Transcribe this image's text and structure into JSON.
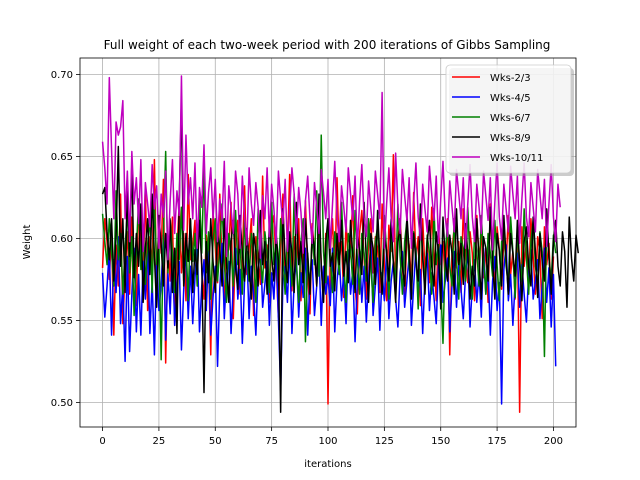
{
  "chart_data": {
    "type": "line",
    "title": "Full weight of each two-week period with 200 iterations of Gibbs Sampling",
    "xlabel": "iterations",
    "ylabel": "Weight",
    "xlim": [
      -10,
      210
    ],
    "ylim": [
      0.485,
      0.71
    ],
    "xticks": [
      0,
      25,
      50,
      75,
      100,
      125,
      150,
      175,
      200
    ],
    "yticks": [
      0.5,
      0.55,
      0.6,
      0.65,
      0.7
    ],
    "grid": true,
    "legend_position": "top-right",
    "series": [
      {
        "name": "Wks-2/3",
        "color": "#ff0000",
        "values": [
          0.582,
          0.612,
          0.598,
          0.575,
          0.603,
          0.541,
          0.596,
          0.571,
          0.627,
          0.548,
          0.579,
          0.604,
          0.566,
          0.613,
          0.585,
          0.559,
          0.621,
          0.596,
          0.574,
          0.632,
          0.556,
          0.601,
          0.583,
          0.648,
          0.569,
          0.612,
          0.591,
          0.636,
          0.524,
          0.598,
          0.574,
          0.613,
          0.547,
          0.592,
          0.621,
          0.579,
          0.603,
          0.562,
          0.639,
          0.587,
          0.596,
          0.611,
          0.571,
          0.624,
          0.581,
          0.563,
          0.602,
          0.588,
          0.529,
          0.616,
          0.595,
          0.573,
          0.627,
          0.584,
          0.561,
          0.604,
          0.593,
          0.622,
          0.551,
          0.598,
          0.611,
          0.566,
          0.587,
          0.632,
          0.578,
          0.594,
          0.612,
          0.553,
          0.601,
          0.589,
          0.572,
          0.638,
          0.582,
          0.596,
          0.561,
          0.607,
          0.614,
          0.583,
          0.552,
          0.598,
          0.627,
          0.571,
          0.593,
          0.639,
          0.568,
          0.601,
          0.584,
          0.612,
          0.562,
          0.596,
          0.623,
          0.578,
          0.554,
          0.609,
          0.592,
          0.571,
          0.618,
          0.584,
          0.561,
          0.603,
          0.499,
          0.592,
          0.612,
          0.573,
          0.637,
          0.587,
          0.598,
          0.564,
          0.611,
          0.583,
          0.592,
          0.626,
          0.571,
          0.554,
          0.603,
          0.617,
          0.588,
          0.563,
          0.598,
          0.612,
          0.579,
          0.601,
          0.594,
          0.567,
          0.621,
          0.585,
          0.562,
          0.608,
          0.592,
          0.651,
          0.571,
          0.599,
          0.612,
          0.583,
          0.561,
          0.604,
          0.596,
          0.573,
          0.628,
          0.587,
          0.601,
          0.559,
          0.612,
          0.581,
          0.596,
          0.573,
          0.619,
          0.588,
          0.562,
          0.607,
          0.584,
          0.598,
          0.574,
          0.612,
          0.529,
          0.593,
          0.607,
          0.582,
          0.598,
          0.567,
          0.618,
          0.589,
          0.573,
          0.604,
          0.591,
          0.562,
          0.614,
          0.587,
          0.603,
          0.576,
          0.594,
          0.561,
          0.621,
          0.588,
          0.572,
          0.607,
          0.593,
          0.569,
          0.601,
          0.585,
          0.614,
          0.578,
          0.592,
          0.563,
          0.604,
          0.494,
          0.607,
          0.583,
          0.598,
          0.571,
          0.612,
          0.589,
          0.566,
          0.601,
          0.592,
          0.551,
          0.607,
          0.584,
          0.597,
          0.563,
          0.589
        ]
      },
      {
        "name": "Wks-4/5",
        "color": "#0000ff",
        "values": [
          0.579,
          0.552,
          0.571,
          0.593,
          0.541,
          0.587,
          0.567,
          0.601,
          0.548,
          0.573,
          0.525,
          0.589,
          0.531,
          0.566,
          0.594,
          0.543,
          0.578,
          0.541,
          0.586,
          0.563,
          0.597,
          0.542,
          0.574,
          0.529,
          0.588,
          0.556,
          0.571,
          0.602,
          0.538,
          0.579,
          0.554,
          0.593,
          0.547,
          0.571,
          0.586,
          0.532,
          0.569,
          0.594,
          0.551,
          0.583,
          0.548,
          0.576,
          0.598,
          0.543,
          0.571,
          0.587,
          0.556,
          0.592,
          0.541,
          0.564,
          0.583,
          0.522,
          0.569,
          0.597,
          0.551,
          0.578,
          0.586,
          0.542,
          0.571,
          0.594,
          0.563,
          0.581,
          0.536,
          0.574,
          0.592,
          0.551,
          0.583,
          0.566,
          0.541,
          0.578,
          0.596,
          0.558,
          0.572,
          0.586,
          0.547,
          0.579,
          0.563,
          0.594,
          0.551,
          0.507,
          0.574,
          0.583,
          0.561,
          0.597,
          0.542,
          0.573,
          0.588,
          0.552,
          0.579,
          0.564,
          0.594,
          0.541,
          0.576,
          0.587,
          0.553,
          0.571,
          0.592,
          0.547,
          0.583,
          0.566,
          0.577,
          0.559,
          0.594,
          0.543,
          0.574,
          0.588,
          0.562,
          0.579,
          0.548,
          0.593,
          0.566,
          0.581,
          0.537,
          0.574,
          0.592,
          0.561,
          0.583,
          0.549,
          0.576,
          0.597,
          0.553,
          0.571,
          0.588,
          0.544,
          0.579,
          0.562,
          0.593,
          0.551,
          0.574,
          0.586,
          0.563,
          0.546,
          0.579,
          0.592,
          0.558,
          0.574,
          0.589,
          0.547,
          0.571,
          0.594,
          0.563,
          0.581,
          0.542,
          0.576,
          0.591,
          0.556,
          0.579,
          0.564,
          0.548,
          0.583,
          0.596,
          0.561,
          0.574,
          0.588,
          0.543,
          0.571,
          0.592,
          0.558,
          0.584,
          0.569,
          0.551,
          0.578,
          0.593,
          0.546,
          0.571,
          0.587,
          0.561,
          0.579,
          0.552,
          0.594,
          0.566,
          0.582,
          0.541,
          0.574,
          0.589,
          0.556,
          0.573,
          0.499,
          0.581,
          0.596,
          0.562,
          0.578,
          0.547,
          0.573,
          0.591,
          0.558,
          0.584,
          0.566,
          0.549,
          0.579,
          0.593,
          0.563,
          0.574,
          0.587,
          0.551,
          0.571,
          0.594,
          0.561,
          0.582,
          0.546,
          0.578,
          0.522
        ]
      },
      {
        "name": "Wks-6/7",
        "color": "#008000",
        "values": [
          0.615,
          0.598,
          0.584,
          0.612,
          0.592,
          0.571,
          0.629,
          0.587,
          0.603,
          0.566,
          0.594,
          0.618,
          0.579,
          0.601,
          0.553,
          0.592,
          0.624,
          0.581,
          0.608,
          0.572,
          0.596,
          0.613,
          0.567,
          0.622,
          0.584,
          0.598,
          0.526,
          0.603,
          0.653,
          0.579,
          0.612,
          0.591,
          0.567,
          0.603,
          0.587,
          0.619,
          0.574,
          0.598,
          0.562,
          0.611,
          0.586,
          0.603,
          0.571,
          0.627,
          0.591,
          0.645,
          0.579,
          0.604,
          0.563,
          0.598,
          0.612,
          0.574,
          0.593,
          0.621,
          0.586,
          0.561,
          0.603,
          0.592,
          0.571,
          0.617,
          0.584,
          0.598,
          0.566,
          0.611,
          0.589,
          0.574,
          0.603,
          0.592,
          0.561,
          0.618,
          0.587,
          0.573,
          0.604,
          0.591,
          0.567,
          0.622,
          0.584,
          0.598,
          0.573,
          0.612,
          0.589,
          0.566,
          0.603,
          0.594,
          0.571,
          0.627,
          0.584,
          0.561,
          0.598,
          0.612,
          0.537,
          0.591,
          0.568,
          0.603,
          0.584,
          0.629,
          0.577,
          0.663,
          0.592,
          0.573,
          0.611,
          0.589,
          0.567,
          0.604,
          0.592,
          0.578,
          0.622,
          0.586,
          0.561,
          0.603,
          0.594,
          0.572,
          0.617,
          0.588,
          0.566,
          0.603,
          0.591,
          0.574,
          0.612,
          0.584,
          0.561,
          0.598,
          0.607,
          0.583,
          0.571,
          0.614,
          0.592,
          0.563,
          0.603,
          0.586,
          0.574,
          0.621,
          0.589,
          0.566,
          0.598,
          0.611,
          0.583,
          0.571,
          0.604,
          0.592,
          0.557,
          0.613,
          0.588,
          0.574,
          0.602,
          0.591,
          0.566,
          0.618,
          0.584,
          0.597,
          0.572,
          0.536,
          0.591,
          0.609,
          0.583,
          0.571,
          0.612,
          0.587,
          0.563,
          0.601,
          0.594,
          0.574,
          0.619,
          0.586,
          0.563,
          0.603,
          0.592,
          0.571,
          0.614,
          0.588,
          0.566,
          0.603,
          0.591,
          0.577,
          0.611,
          0.584,
          0.562,
          0.598,
          0.607,
          0.583,
          0.571,
          0.613,
          0.592,
          0.564,
          0.603,
          0.586,
          0.574,
          0.618,
          0.589,
          0.566,
          0.598,
          0.611,
          0.583,
          0.571,
          0.604,
          0.592,
          0.528,
          0.613,
          0.588,
          0.574,
          0.602,
          0.591
        ]
      },
      {
        "name": "Wks-8/9",
        "color": "#000000",
        "values": [
          0.627,
          0.631,
          0.604,
          0.587,
          0.612,
          0.574,
          0.601,
          0.656,
          0.583,
          0.612,
          0.567,
          0.632,
          0.589,
          0.646,
          0.576,
          0.603,
          0.583,
          0.621,
          0.561,
          0.594,
          0.612,
          0.578,
          0.627,
          0.589,
          0.558,
          0.614,
          0.596,
          0.571,
          0.603,
          0.582,
          0.611,
          0.567,
          0.594,
          0.542,
          0.622,
          0.685,
          0.571,
          0.603,
          0.586,
          0.612,
          0.567,
          0.593,
          0.578,
          0.611,
          0.584,
          0.506,
          0.598,
          0.573,
          0.612,
          0.586,
          0.567,
          0.603,
          0.594,
          0.571,
          0.612,
          0.584,
          0.561,
          0.598,
          0.611,
          0.582,
          0.569,
          0.614,
          0.591,
          0.574,
          0.606,
          0.582,
          0.563,
          0.603,
          0.592,
          0.571,
          0.617,
          0.584,
          0.598,
          0.566,
          0.611,
          0.589,
          0.574,
          0.603,
          0.586,
          0.494,
          0.618,
          0.587,
          0.573,
          0.604,
          0.591,
          0.567,
          0.622,
          0.584,
          0.598,
          0.573,
          0.612,
          0.589,
          0.566,
          0.603,
          0.594,
          0.571,
          0.627,
          0.584,
          0.561,
          0.598,
          0.612,
          0.583,
          0.591,
          0.568,
          0.603,
          0.584,
          0.611,
          0.577,
          0.592,
          0.573,
          0.611,
          0.589,
          0.567,
          0.604,
          0.592,
          0.578,
          0.622,
          0.586,
          0.561,
          0.603,
          0.594,
          0.572,
          0.617,
          0.588,
          0.566,
          0.603,
          0.591,
          0.574,
          0.612,
          0.584,
          0.561,
          0.598,
          0.607,
          0.583,
          0.571,
          0.614,
          0.592,
          0.563,
          0.603,
          0.586,
          0.574,
          0.621,
          0.589,
          0.566,
          0.598,
          0.611,
          0.583,
          0.571,
          0.604,
          0.592,
          0.557,
          0.613,
          0.588,
          0.574,
          0.602,
          0.591,
          0.566,
          0.618,
          0.584,
          0.597,
          0.572,
          0.609,
          0.591,
          0.563,
          0.583,
          0.571,
          0.612,
          0.587,
          0.563,
          0.601,
          0.594,
          0.574,
          0.619,
          0.586,
          0.563,
          0.603,
          0.592,
          0.571,
          0.614,
          0.588,
          0.566,
          0.603,
          0.591,
          0.577,
          0.611,
          0.584,
          0.562,
          0.598,
          0.607,
          0.583,
          0.571,
          0.613,
          0.592,
          0.564,
          0.603,
          0.586,
          0.574,
          0.618,
          0.589,
          0.566,
          0.598,
          0.611,
          0.583,
          0.571,
          0.604,
          0.592,
          0.558,
          0.613,
          0.588,
          0.574,
          0.602,
          0.591
        ]
      },
      {
        "name": "Wks-10/11",
        "color": "#bf00bf",
        "values": [
          0.659,
          0.643,
          0.621,
          0.698,
          0.654,
          0.612,
          0.671,
          0.663,
          0.668,
          0.684,
          0.612,
          0.641,
          0.598,
          0.653,
          0.621,
          0.637,
          0.609,
          0.648,
          0.592,
          0.634,
          0.621,
          0.607,
          0.645,
          0.618,
          0.632,
          0.594,
          0.627,
          0.613,
          0.641,
          0.587,
          0.623,
          0.648,
          0.603,
          0.629,
          0.614,
          0.699,
          0.605,
          0.663,
          0.621,
          0.637,
          0.612,
          0.646,
          0.594,
          0.631,
          0.619,
          0.657,
          0.603,
          0.628,
          0.643,
          0.612,
          0.636,
          0.598,
          0.624,
          0.611,
          0.647,
          0.589,
          0.632,
          0.618,
          0.603,
          0.641,
          0.627,
          0.594,
          0.638,
          0.613,
          0.596,
          0.643,
          0.621,
          0.608,
          0.634,
          0.619,
          0.588,
          0.626,
          0.612,
          0.643,
          0.601,
          0.633,
          0.618,
          0.597,
          0.641,
          0.624,
          0.609,
          0.636,
          0.592,
          0.618,
          0.643,
          0.627,
          0.603,
          0.631,
          0.616,
          0.591,
          0.623,
          0.638,
          0.612,
          0.597,
          0.634,
          0.619,
          0.603,
          0.642,
          0.628,
          0.612,
          0.636,
          0.594,
          0.621,
          0.647,
          0.613,
          0.598,
          0.632,
          0.619,
          0.604,
          0.643,
          0.627,
          0.611,
          0.638,
          0.594,
          0.622,
          0.645,
          0.613,
          0.601,
          0.635,
          0.618,
          0.604,
          0.641,
          0.627,
          0.612,
          0.689,
          0.594,
          0.621,
          0.643,
          0.613,
          0.598,
          0.652,
          0.619,
          0.603,
          0.642,
          0.626,
          0.611,
          0.637,
          0.594,
          0.622,
          0.646,
          0.613,
          0.599,
          0.633,
          0.618,
          0.604,
          0.644,
          0.627,
          0.611,
          0.638,
          0.597,
          0.624,
          0.647,
          0.613,
          0.601,
          0.635,
          0.619,
          0.604,
          0.642,
          0.627,
          0.612,
          0.637,
          0.594,
          0.621,
          0.645,
          0.613,
          0.598,
          0.633,
          0.619,
          0.603,
          0.641,
          0.626,
          0.611,
          0.637,
          0.593,
          0.622,
          0.646,
          0.613,
          0.599,
          0.633,
          0.618,
          0.604,
          0.644,
          0.627,
          0.612,
          0.638,
          0.597,
          0.624,
          0.646,
          0.613,
          0.601,
          0.634,
          0.619,
          0.604,
          0.642,
          0.627,
          0.612,
          0.636,
          0.595,
          0.621,
          0.645,
          0.613,
          0.598,
          0.633,
          0.619
        ]
      }
    ]
  }
}
